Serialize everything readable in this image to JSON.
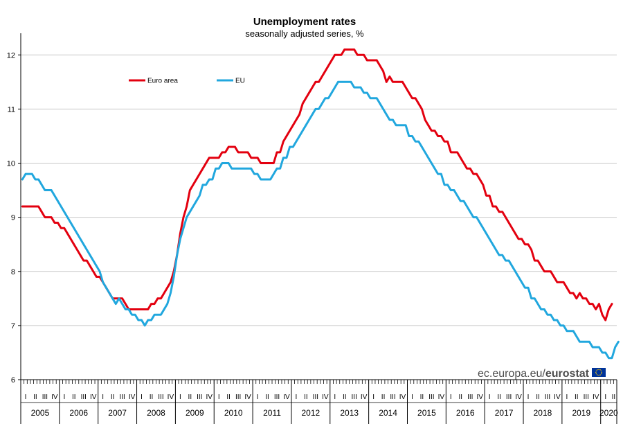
{
  "chart_data": {
    "type": "line",
    "title": "Unemployment rates",
    "subtitle": "seasonally adjusted series, %",
    "x_unit": "month",
    "x_start": "2005-01",
    "x_end": "2020-05",
    "years": [
      "2005",
      "2006",
      "2007",
      "2008",
      "2009",
      "2010",
      "2011",
      "2012",
      "2013",
      "2014",
      "2015",
      "2016",
      "2017",
      "2018",
      "2019",
      "2020"
    ],
    "quarter_labels": [
      "I",
      "II",
      "III",
      "IV"
    ],
    "ylim": [
      6,
      12.4
    ],
    "yticks": [
      6,
      7,
      8,
      9,
      10,
      11,
      12
    ],
    "grid": true,
    "legend_position": "top-left",
    "series": [
      {
        "name": "Euro area",
        "color": "#e3000f",
        "values": [
          9.2,
          9.2,
          9.2,
          9.2,
          9.2,
          9.2,
          9.1,
          9.0,
          9.0,
          9.0,
          8.9,
          8.9,
          8.8,
          8.8,
          8.7,
          8.6,
          8.5,
          8.4,
          8.3,
          8.2,
          8.2,
          8.1,
          8.0,
          7.9,
          7.9,
          7.8,
          7.7,
          7.6,
          7.5,
          7.5,
          7.5,
          7.5,
          7.4,
          7.3,
          7.3,
          7.3,
          7.3,
          7.3,
          7.3,
          7.3,
          7.4,
          7.4,
          7.5,
          7.5,
          7.6,
          7.7,
          7.8,
          8.0,
          8.3,
          8.7,
          9.0,
          9.2,
          9.5,
          9.6,
          9.7,
          9.8,
          9.9,
          10.0,
          10.1,
          10.1,
          10.1,
          10.1,
          10.2,
          10.2,
          10.3,
          10.3,
          10.3,
          10.2,
          10.2,
          10.2,
          10.2,
          10.1,
          10.1,
          10.1,
          10.0,
          10.0,
          10.0,
          10.0,
          10.0,
          10.2,
          10.2,
          10.4,
          10.5,
          10.6,
          10.7,
          10.8,
          10.9,
          11.1,
          11.2,
          11.3,
          11.4,
          11.5,
          11.5,
          11.6,
          11.7,
          11.8,
          11.9,
          12.0,
          12.0,
          12.0,
          12.1,
          12.1,
          12.1,
          12.1,
          12.0,
          12.0,
          12.0,
          11.9,
          11.9,
          11.9,
          11.9,
          11.8,
          11.7,
          11.5,
          11.6,
          11.5,
          11.5,
          11.5,
          11.5,
          11.4,
          11.3,
          11.2,
          11.2,
          11.1,
          11.0,
          10.8,
          10.7,
          10.6,
          10.6,
          10.5,
          10.5,
          10.4,
          10.4,
          10.2,
          10.2,
          10.2,
          10.1,
          10.0,
          9.9,
          9.9,
          9.8,
          9.8,
          9.7,
          9.6,
          9.4,
          9.4,
          9.2,
          9.2,
          9.1,
          9.1,
          9.0,
          8.9,
          8.8,
          8.7,
          8.6,
          8.6,
          8.5,
          8.5,
          8.4,
          8.2,
          8.2,
          8.1,
          8.0,
          8.0,
          8.0,
          7.9,
          7.8,
          7.8,
          7.8,
          7.7,
          7.6,
          7.6,
          7.5,
          7.6,
          7.5,
          7.5,
          7.4,
          7.4,
          7.3,
          7.4,
          7.2,
          7.1,
          7.3,
          7.4
        ]
      },
      {
        "name": "EU",
        "color": "#21a7de",
        "values": [
          9.7,
          9.8,
          9.8,
          9.8,
          9.7,
          9.7,
          9.6,
          9.5,
          9.5,
          9.5,
          9.4,
          9.3,
          9.2,
          9.1,
          9.0,
          8.9,
          8.8,
          8.7,
          8.6,
          8.5,
          8.4,
          8.3,
          8.2,
          8.1,
          8.0,
          7.8,
          7.7,
          7.6,
          7.5,
          7.4,
          7.5,
          7.4,
          7.3,
          7.3,
          7.2,
          7.2,
          7.1,
          7.1,
          7.0,
          7.1,
          7.1,
          7.2,
          7.2,
          7.2,
          7.3,
          7.4,
          7.6,
          7.9,
          8.3,
          8.6,
          8.8,
          9.0,
          9.1,
          9.2,
          9.3,
          9.4,
          9.6,
          9.6,
          9.7,
          9.7,
          9.9,
          9.9,
          10.0,
          10.0,
          10.0,
          9.9,
          9.9,
          9.9,
          9.9,
          9.9,
          9.9,
          9.9,
          9.8,
          9.8,
          9.7,
          9.7,
          9.7,
          9.7,
          9.8,
          9.9,
          9.9,
          10.1,
          10.1,
          10.3,
          10.3,
          10.4,
          10.5,
          10.6,
          10.7,
          10.8,
          10.9,
          11.0,
          11.0,
          11.1,
          11.2,
          11.2,
          11.3,
          11.4,
          11.5,
          11.5,
          11.5,
          11.5,
          11.5,
          11.4,
          11.4,
          11.4,
          11.3,
          11.3,
          11.2,
          11.2,
          11.2,
          11.1,
          11.0,
          10.9,
          10.8,
          10.8,
          10.7,
          10.7,
          10.7,
          10.7,
          10.5,
          10.5,
          10.4,
          10.4,
          10.3,
          10.2,
          10.1,
          10.0,
          9.9,
          9.8,
          9.8,
          9.6,
          9.6,
          9.5,
          9.5,
          9.4,
          9.3,
          9.3,
          9.2,
          9.1,
          9.0,
          9.0,
          8.9,
          8.8,
          8.7,
          8.6,
          8.5,
          8.4,
          8.3,
          8.3,
          8.2,
          8.2,
          8.1,
          8.0,
          7.9,
          7.8,
          7.7,
          7.7,
          7.5,
          7.5,
          7.4,
          7.3,
          7.3,
          7.2,
          7.2,
          7.1,
          7.1,
          7.0,
          7.0,
          6.9,
          6.9,
          6.9,
          6.8,
          6.7,
          6.7,
          6.7,
          6.7,
          6.6,
          6.6,
          6.6,
          6.5,
          6.5,
          6.4,
          6.4,
          6.6,
          6.7
        ]
      }
    ]
  },
  "brand": {
    "text_regular": "ec.europa.eu/",
    "text_bold": "eurostat",
    "flag_color": "#003399",
    "star_color": "#ffcc00"
  }
}
